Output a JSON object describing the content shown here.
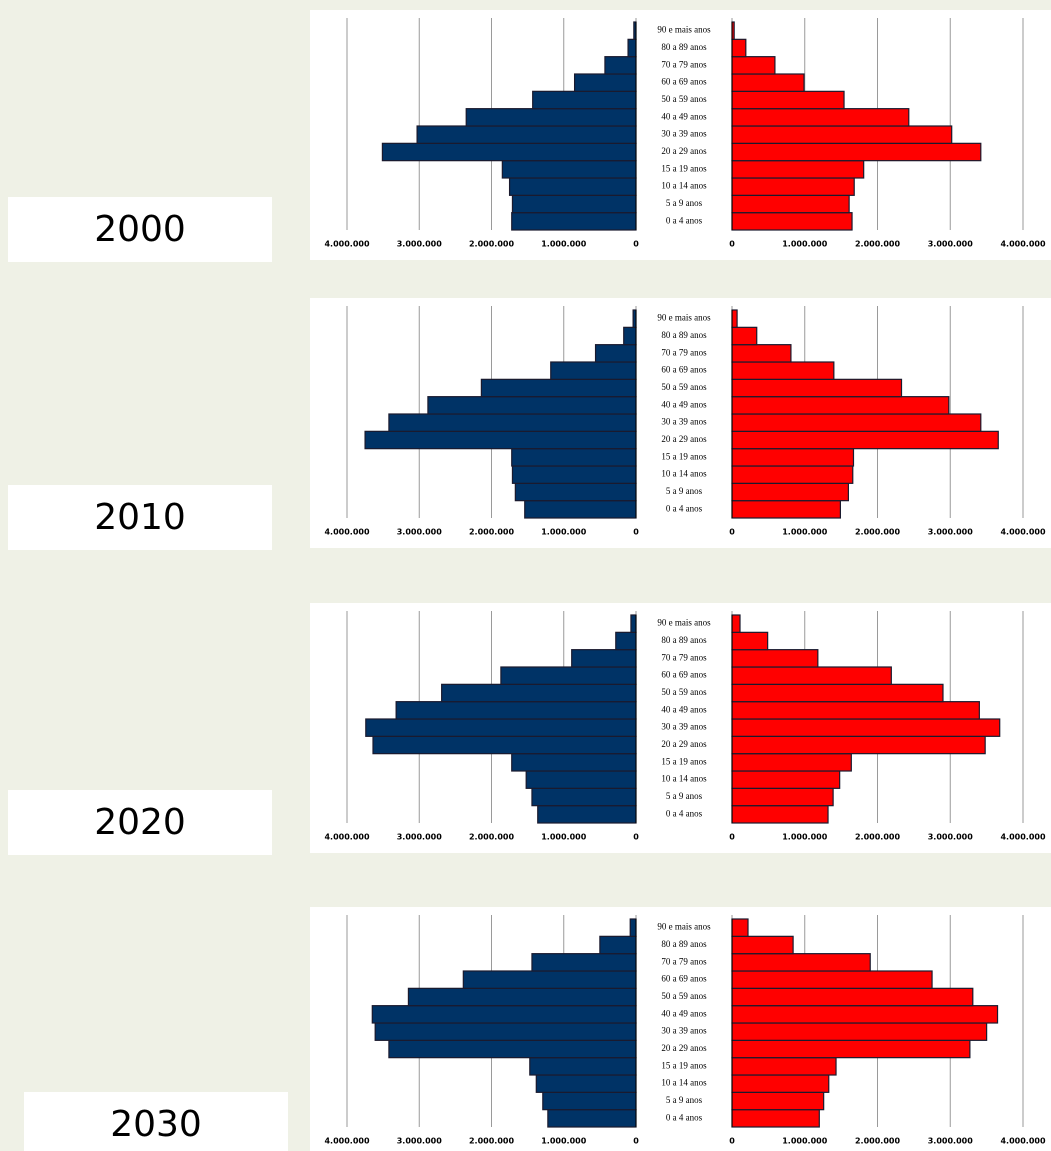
{
  "chart_data": [
    {
      "type": "pyramid",
      "title": "2000",
      "categories": [
        "0 a 4 anos",
        "5 a 9 anos",
        "10 a 14 anos",
        "15 a 19 anos",
        "20 a 29 anos",
        "30 a 39 anos",
        "40 a 49 anos",
        "50 a 59 anos",
        "60 a 69 anos",
        "70 a 79 anos",
        "80 a 89 anos",
        "90 e mais anos"
      ],
      "series": [
        {
          "color": "#003366",
          "values": [
            1720000,
            1710000,
            1750000,
            1850000,
            3510000,
            3030000,
            2350000,
            1430000,
            850000,
            430000,
            110000,
            30000
          ]
        },
        {
          "color": "#ff0000",
          "values": [
            1650000,
            1610000,
            1680000,
            1810000,
            3420000,
            3020000,
            2430000,
            1540000,
            990000,
            590000,
            190000,
            30000
          ]
        }
      ],
      "xlim": [
        0,
        4000000
      ],
      "xticks": [
        {
          "value": 4000000,
          "label": "4.000.000"
        },
        {
          "value": 3000000,
          "label": "3.000.000"
        },
        {
          "value": 2000000,
          "label": "2.000.000"
        },
        {
          "value": 1000000,
          "label": "1.000.000"
        },
        0
      ],
      "grid": true
    },
    {
      "type": "pyramid",
      "title": "2010",
      "categories": [
        "0 a 4 anos",
        "5 a 9 anos",
        "10 a 14 anos",
        "15 a 19 anos",
        "20 a 29 anos",
        "30 a 39 anos",
        "40 a 49 anos",
        "50 a 59 anos",
        "60 a 69 anos",
        "70 a 79 anos",
        "80 a 89 anos",
        "90 e mais anos"
      ],
      "series": [
        {
          "color": "#003366",
          "values": [
            1540000,
            1670000,
            1710000,
            1720000,
            3750000,
            3420000,
            2880000,
            2140000,
            1180000,
            560000,
            170000,
            40000
          ]
        },
        {
          "color": "#ff0000",
          "values": [
            1490000,
            1600000,
            1660000,
            1670000,
            3660000,
            3420000,
            2980000,
            2330000,
            1400000,
            810000,
            340000,
            70000
          ]
        }
      ],
      "xlim": [
        0,
        4000000
      ],
      "xticks": [
        {
          "value": 4000000,
          "label": "4.000.000"
        },
        {
          "value": 3000000,
          "label": "3.000.000"
        },
        {
          "value": 2000000,
          "label": "2.000.000"
        },
        {
          "value": 1000000,
          "label": "1.000.000"
        },
        0
      ],
      "grid": true
    },
    {
      "type": "pyramid",
      "title": "2020",
      "categories": [
        "0 a 4 anos",
        "5 a 9 anos",
        "10 a 14 anos",
        "15 a 19 anos",
        "20 a 29 anos",
        "30 a 39 anos",
        "40 a 49 anos",
        "50 a 59 anos",
        "60 a 69 anos",
        "70 a 79 anos",
        "80 a 89 anos",
        "90 e mais anos"
      ],
      "series": [
        {
          "color": "#003366",
          "values": [
            1360000,
            1440000,
            1520000,
            1720000,
            3640000,
            3740000,
            3320000,
            2690000,
            1870000,
            890000,
            280000,
            70000
          ]
        },
        {
          "color": "#ff0000",
          "values": [
            1320000,
            1390000,
            1480000,
            1640000,
            3480000,
            3680000,
            3400000,
            2900000,
            2190000,
            1180000,
            490000,
            110000
          ]
        }
      ],
      "xlim": [
        0,
        4000000
      ],
      "xticks": [
        {
          "value": 4000000,
          "label": "4.000.000"
        },
        {
          "value": 3000000,
          "label": "3.000.000"
        },
        {
          "value": 2000000,
          "label": "2.000.000"
        },
        {
          "value": 1000000,
          "label": "1.000.000"
        },
        0
      ],
      "grid": true
    },
    {
      "type": "pyramid",
      "title": "2030",
      "categories": [
        "0 a 4 anos",
        "5 a 9 anos",
        "10 a 14 anos",
        "15 a 19 anos",
        "20 a 29 anos",
        "30 a 39 anos",
        "40 a 49 anos",
        "50 a 59 anos",
        "60 a 69 anos",
        "70 a 79 anos",
        "80 a 89 anos",
        "90 e mais anos"
      ],
      "series": [
        {
          "color": "#003366",
          "values": [
            1220000,
            1290000,
            1380000,
            1470000,
            3420000,
            3610000,
            3650000,
            3150000,
            2390000,
            1440000,
            500000,
            80000
          ]
        },
        {
          "color": "#ff0000",
          "values": [
            1200000,
            1260000,
            1330000,
            1430000,
            3270000,
            3500000,
            3650000,
            3310000,
            2750000,
            1900000,
            840000,
            220000
          ]
        }
      ],
      "xlim": [
        0,
        4000000
      ],
      "xticks": [
        {
          "value": 4000000,
          "label": "4.000.000"
        },
        {
          "value": 3000000,
          "label": "3.000.000"
        },
        {
          "value": 2000000,
          "label": "2.000.000"
        },
        {
          "value": 1000000,
          "label": "1.000.000"
        },
        0
      ],
      "grid": true
    }
  ]
}
